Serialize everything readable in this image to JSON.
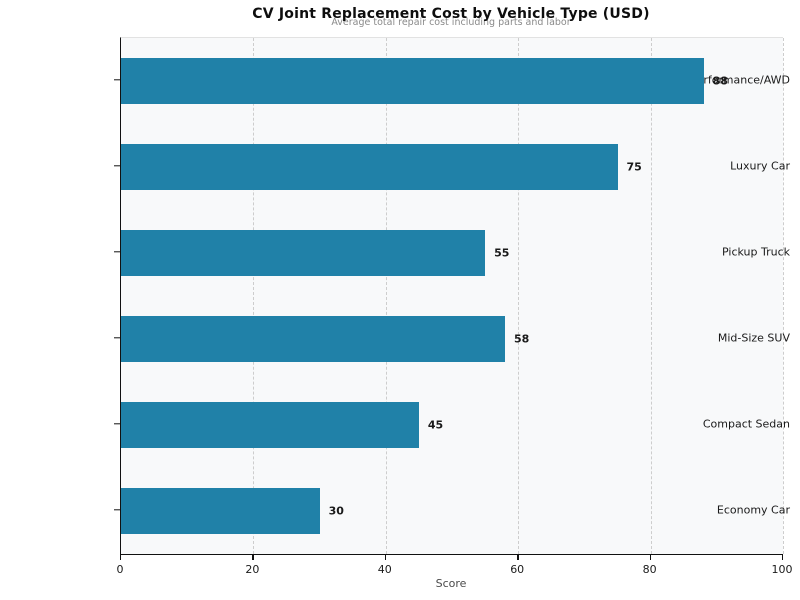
{
  "chart_data": {
    "type": "bar",
    "orientation": "horizontal",
    "title": "CV Joint Replacement Cost by Vehicle Type (USD)",
    "subtitle": "Average total repair cost including parts and labor",
    "categories": [
      "Performance/AWD",
      "Luxury Car",
      "Pickup Truck",
      "Mid-Size SUV",
      "Compact Sedan",
      "Economy Car"
    ],
    "values": [
      88,
      75,
      55,
      58,
      45,
      30
    ],
    "xlabel": "Score",
    "ylabel": "",
    "xlim": [
      0,
      100
    ],
    "xticks": [
      0,
      20,
      40,
      60,
      80,
      100
    ],
    "grid": "vertical dashed gridlines on",
    "legend_position": "none",
    "value_labels": "bold, right of each bar"
  },
  "colors": {
    "bar": "#2081a8",
    "plot_background": "#f8f9fa",
    "figure_background": "#ffffff",
    "gridline": "#cdcdcd",
    "title_text": "#0e0e0e",
    "subtitle_text": "#8a8a8a",
    "tick_text": "#1a1a1a",
    "axis_label_text": "#4a4a4a",
    "spine": "#111111"
  }
}
